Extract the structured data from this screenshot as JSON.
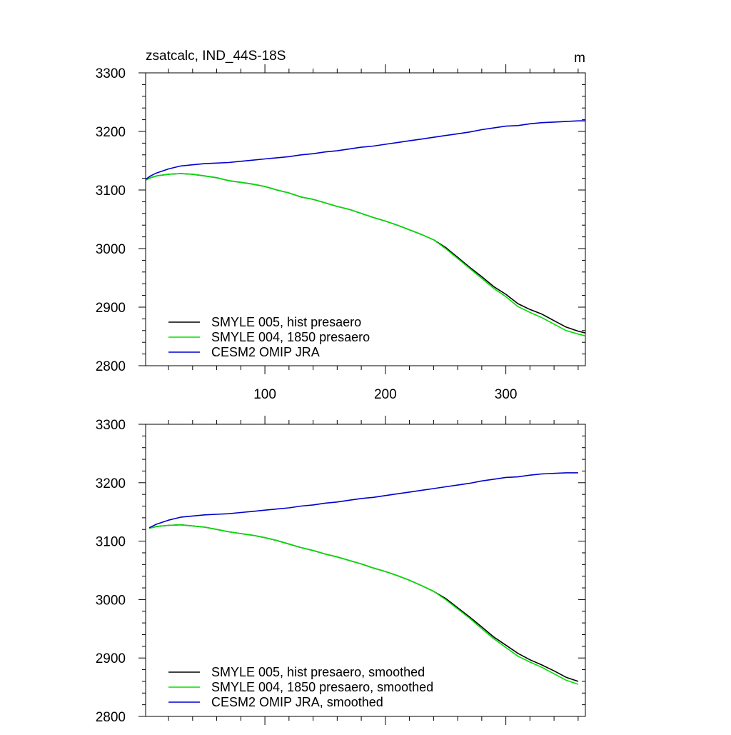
{
  "figure": {
    "title": "zsatcalc, IND_44S-18S",
    "units": "m"
  },
  "chart_data": [
    {
      "type": "line",
      "panel": "top",
      "title": "zsatcalc, IND_44S-18S",
      "units": "m",
      "xlim": [
        1,
        366
      ],
      "ylim": [
        2800,
        3300
      ],
      "x_ticks": [
        100,
        200,
        300
      ],
      "y_ticks": [
        2800,
        2900,
        3000,
        3100,
        3200,
        3300
      ],
      "legend_position": "bottom-left",
      "series": [
        {
          "name": "SMYLE 005, hist presaero",
          "color": "#000000",
          "x": [
            1,
            5,
            10,
            20,
            30,
            40,
            50,
            60,
            70,
            80,
            90,
            100,
            110,
            120,
            130,
            140,
            150,
            160,
            170,
            180,
            190,
            200,
            210,
            220,
            230,
            240,
            250,
            260,
            270,
            280,
            290,
            300,
            310,
            320,
            330,
            340,
            350,
            360,
            366
          ],
          "y": [
            3117,
            3121,
            3124,
            3127,
            3128,
            3127,
            3124,
            3121,
            3116,
            3113,
            3110,
            3106,
            3100,
            3095,
            3088,
            3084,
            3078,
            3072,
            3067,
            3060,
            3053,
            3047,
            3040,
            3032,
            3024,
            3015,
            3002,
            2985,
            2968,
            2952,
            2935,
            2922,
            2906,
            2896,
            2888,
            2877,
            2866,
            2859,
            2856
          ]
        },
        {
          "name": "SMYLE 004, 1850 presaero",
          "color": "#00e000",
          "x": [
            1,
            5,
            10,
            20,
            30,
            40,
            50,
            60,
            70,
            80,
            90,
            100,
            110,
            120,
            130,
            140,
            150,
            160,
            170,
            180,
            190,
            200,
            210,
            220,
            230,
            240,
            250,
            260,
            270,
            280,
            290,
            300,
            310,
            320,
            330,
            340,
            350,
            360,
            366
          ],
          "y": [
            3117,
            3121,
            3124,
            3127,
            3128,
            3127,
            3124,
            3121,
            3116,
            3113,
            3110,
            3106,
            3100,
            3095,
            3088,
            3084,
            3078,
            3072,
            3067,
            3060,
            3053,
            3047,
            3040,
            3032,
            3024,
            3015,
            3000,
            2983,
            2966,
            2949,
            2932,
            2918,
            2901,
            2891,
            2882,
            2871,
            2860,
            2854,
            2851
          ]
        },
        {
          "name": "CESM2 OMIP JRA",
          "color": "#0000cc",
          "x": [
            1,
            5,
            10,
            20,
            30,
            40,
            50,
            60,
            70,
            80,
            90,
            100,
            110,
            120,
            130,
            140,
            150,
            160,
            170,
            180,
            190,
            200,
            210,
            220,
            230,
            240,
            250,
            260,
            270,
            280,
            290,
            300,
            310,
            320,
            330,
            340,
            350,
            360,
            366
          ],
          "y": [
            3118,
            3124,
            3129,
            3136,
            3141,
            3143,
            3145,
            3146,
            3147,
            3149,
            3151,
            3153,
            3155,
            3157,
            3160,
            3162,
            3165,
            3167,
            3170,
            3173,
            3175,
            3178,
            3181,
            3184,
            3187,
            3190,
            3193,
            3196,
            3199,
            3203,
            3206,
            3209,
            3210,
            3213,
            3215,
            3216,
            3217,
            3218,
            3218
          ]
        }
      ]
    },
    {
      "type": "line",
      "panel": "bottom",
      "xlim": [
        1,
        366
      ],
      "ylim": [
        2800,
        3300
      ],
      "x_ticks": [
        100,
        200,
        300
      ],
      "y_ticks": [
        2800,
        2900,
        3000,
        3100,
        3200,
        3300
      ],
      "legend_position": "bottom-left",
      "series": [
        {
          "name": "SMYLE 005, hist presaero, smoothed",
          "color": "#000000",
          "x": [
            4,
            10,
            20,
            30,
            40,
            50,
            60,
            70,
            80,
            90,
            100,
            110,
            120,
            130,
            140,
            150,
            160,
            170,
            180,
            190,
            200,
            210,
            220,
            230,
            240,
            250,
            260,
            270,
            280,
            290,
            300,
            310,
            320,
            330,
            340,
            350,
            360
          ],
          "y": [
            3122,
            3125,
            3127,
            3128,
            3126,
            3124,
            3120,
            3116,
            3113,
            3110,
            3106,
            3101,
            3095,
            3089,
            3084,
            3078,
            3073,
            3067,
            3061,
            3054,
            3048,
            3041,
            3033,
            3024,
            3014,
            3002,
            2986,
            2970,
            2953,
            2936,
            2922,
            2908,
            2897,
            2888,
            2878,
            2867,
            2860
          ]
        },
        {
          "name": "SMYLE 004, 1850 presaero, smoothed",
          "color": "#00e000",
          "x": [
            4,
            10,
            20,
            30,
            40,
            50,
            60,
            70,
            80,
            90,
            100,
            110,
            120,
            130,
            140,
            150,
            160,
            170,
            180,
            190,
            200,
            210,
            220,
            230,
            240,
            250,
            260,
            270,
            280,
            290,
            300,
            310,
            320,
            330,
            340,
            350,
            360
          ],
          "y": [
            3122,
            3125,
            3127,
            3128,
            3126,
            3124,
            3120,
            3116,
            3113,
            3110,
            3106,
            3101,
            3095,
            3089,
            3084,
            3078,
            3073,
            3067,
            3061,
            3054,
            3048,
            3041,
            3033,
            3024,
            3014,
            3000,
            2984,
            2968,
            2950,
            2933,
            2918,
            2903,
            2893,
            2884,
            2873,
            2862,
            2855
          ]
        },
        {
          "name": "CESM2 OMIP JRA, smoothed",
          "color": "#0000cc",
          "x": [
            4,
            10,
            20,
            30,
            40,
            50,
            60,
            70,
            80,
            90,
            100,
            110,
            120,
            130,
            140,
            150,
            160,
            170,
            180,
            190,
            200,
            210,
            220,
            230,
            240,
            250,
            260,
            270,
            280,
            290,
            300,
            310,
            320,
            330,
            340,
            350,
            360
          ],
          "y": [
            3123,
            3129,
            3136,
            3141,
            3143,
            3145,
            3146,
            3147,
            3149,
            3151,
            3153,
            3155,
            3157,
            3160,
            3162,
            3165,
            3167,
            3170,
            3173,
            3175,
            3178,
            3181,
            3184,
            3187,
            3190,
            3193,
            3196,
            3199,
            3203,
            3206,
            3209,
            3210,
            3213,
            3215,
            3216,
            3217,
            3217
          ]
        }
      ]
    }
  ]
}
